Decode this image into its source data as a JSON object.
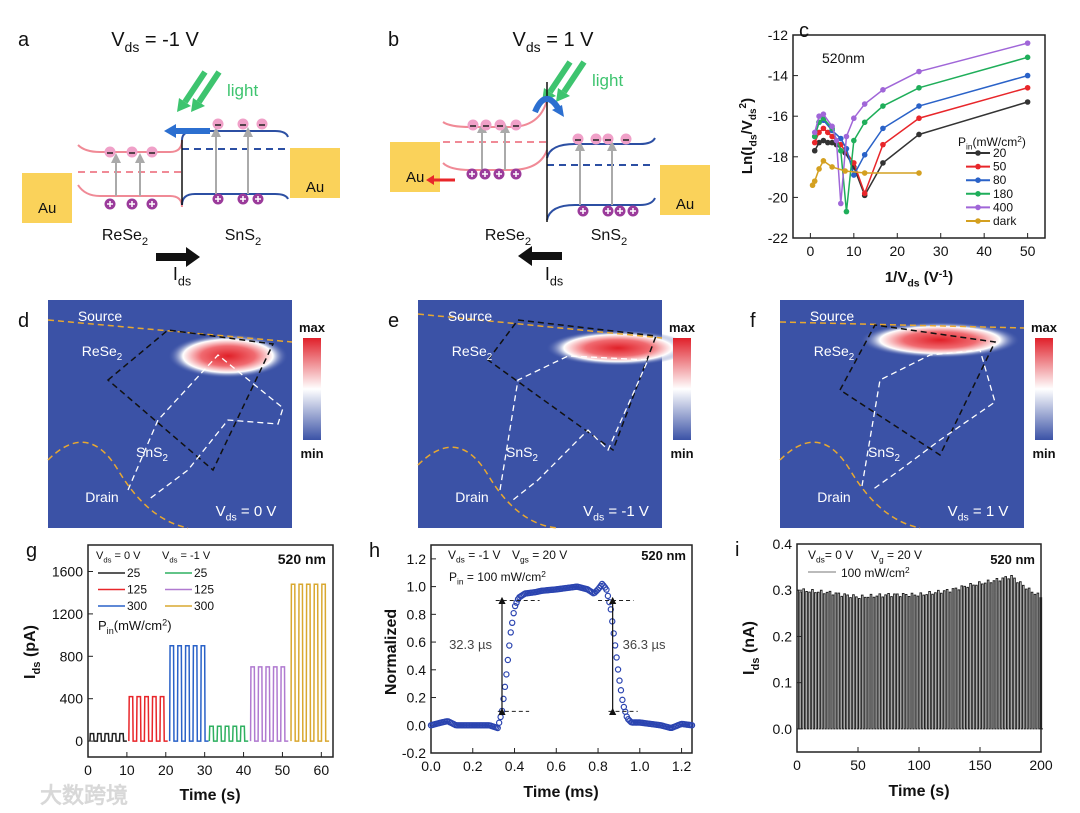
{
  "watermark": "大数跨境",
  "panels": {
    "a": {
      "label": "a",
      "title": {
        "main": "V",
        "sub": "ds",
        "rest": " = -1 V"
      },
      "light": "light",
      "left_metal": "Au",
      "right_metal": "Au",
      "left_material": {
        "main": "ReSe",
        "sub": "2"
      },
      "right_material": {
        "main": "SnS",
        "sub": "2"
      },
      "current": {
        "main": "I",
        "sub": "ds"
      },
      "current_direction": "right"
    },
    "b": {
      "label": "b",
      "title": {
        "main": "V",
        "sub": "ds",
        "rest": " = 1 V"
      },
      "light": "light",
      "left_metal": "Au",
      "right_metal": "Au",
      "left_material": {
        "main": "ReSe",
        "sub": "2"
      },
      "right_material": {
        "main": "SnS",
        "sub": "2"
      },
      "current": {
        "main": "I",
        "sub": "ds"
      },
      "current_direction": "left"
    },
    "d": {
      "label": "d",
      "source": "Source",
      "drain": "Drain",
      "rese2": {
        "main": "ReSe",
        "sub": "2"
      },
      "sns2": {
        "main": "SnS",
        "sub": "2"
      },
      "bias": {
        "main": "V",
        "sub": "ds",
        "rest": " = 0 V"
      },
      "cb_max": "max",
      "cb_min": "min"
    },
    "e": {
      "label": "e",
      "source": "Source",
      "drain": "Drain",
      "rese2": {
        "main": "ReSe",
        "sub": "2"
      },
      "sns2": {
        "main": "SnS",
        "sub": "2"
      },
      "bias": {
        "main": "V",
        "sub": "ds",
        "rest": " = -1 V"
      },
      "cb_max": "max",
      "cb_min": "min"
    },
    "f": {
      "label": "f",
      "source": "Source",
      "drain": "Drain",
      "rese2": {
        "main": "ReSe",
        "sub": "2"
      },
      "sns2": {
        "main": "SnS",
        "sub": "2"
      },
      "bias": {
        "main": "V",
        "sub": "ds",
        "rest": " = 1 V"
      },
      "cb_max": "max",
      "cb_min": "min"
    }
  },
  "colors": {
    "heat_bg": "#3b52a6",
    "hot": "#e8202a",
    "au": "#fad25a",
    "rese2_band": "#f08a96",
    "sns2_band": "#2c4fa3",
    "light": "#3ec46f",
    "electron": "#f0a0c8",
    "hole": "#9b3b9b"
  },
  "chart_data": [
    {
      "id": "c",
      "label": "c",
      "type": "line",
      "annotation": "520nm",
      "xlabel": {
        "main": "1/V",
        "sub": "ds",
        "rest": " (V",
        "sup": "-1",
        "end": ")"
      },
      "ylabel": "Ln(I_ds/V_ds^2)",
      "xlim": [
        -4,
        54
      ],
      "ylim": [
        -22,
        -12
      ],
      "xticks": [
        0,
        10,
        20,
        30,
        40,
        50
      ],
      "yticks": [
        -22,
        -20,
        -18,
        -16,
        -14,
        -12
      ],
      "legend_title": {
        "main": "P",
        "sub": "in",
        "rest": "(mW/cm",
        "sup": "2",
        "end": ")"
      },
      "legend_position": "bottom-right",
      "series": [
        {
          "name": "20",
          "color": "#333333",
          "marker": "square",
          "x": [
            1,
            2,
            3,
            4,
            5,
            6,
            8,
            10,
            12.5,
            16.7,
            25,
            50
          ],
          "y": [
            -17.7,
            -17.3,
            -17.2,
            -17.3,
            -17.3,
            -17.4,
            -17.8,
            -18.5,
            -19.9,
            -18.3,
            -16.9,
            -15.3
          ]
        },
        {
          "name": "50",
          "color": "#e8262a",
          "marker": "circle",
          "x": [
            1,
            2,
            3,
            4,
            5,
            7,
            10,
            12.5,
            16.7,
            25,
            50
          ],
          "y": [
            -17.3,
            -16.8,
            -16.6,
            -16.8,
            -17.0,
            -17.4,
            -18.3,
            -19.8,
            -17.4,
            -16.1,
            -14.6
          ]
        },
        {
          "name": "80",
          "color": "#2a62c8",
          "marker": "triangle-up",
          "x": [
            1,
            2,
            3,
            5,
            7,
            8.3,
            10,
            12.5,
            16.7,
            25,
            50
          ],
          "y": [
            -17.0,
            -16.3,
            -16.2,
            -16.7,
            -17.1,
            -17.6,
            -18.9,
            -17.9,
            -16.6,
            -15.5,
            -14.0
          ]
        },
        {
          "name": "180",
          "color": "#1fae5a",
          "marker": "triangle-down",
          "x": [
            1,
            2,
            3,
            5,
            7,
            8.3,
            10,
            12.5,
            16.7,
            25,
            50
          ],
          "y": [
            -17.0,
            -16.3,
            -16.1,
            -16.6,
            -17.7,
            -20.7,
            -17.2,
            -16.3,
            -15.5,
            -14.6,
            -13.1
          ]
        },
        {
          "name": "400",
          "color": "#a066d8",
          "marker": "diamond",
          "x": [
            1,
            2,
            3,
            5,
            6,
            7,
            8.3,
            10,
            12.5,
            16.7,
            25,
            50
          ],
          "y": [
            -16.8,
            -16.0,
            -15.9,
            -16.5,
            -17.2,
            -20.3,
            -17.0,
            -16.1,
            -15.4,
            -14.7,
            -13.8,
            -12.4
          ]
        },
        {
          "name": "dark",
          "color": "#d4a020",
          "marker": "triangle-left",
          "x": [
            0.5,
            1,
            2,
            3,
            5,
            8,
            12.5,
            25
          ],
          "y": [
            -19.4,
            -19.2,
            -18.6,
            -18.2,
            -18.5,
            -18.7,
            -18.8,
            -18.8
          ]
        }
      ]
    },
    {
      "id": "g",
      "label": "g",
      "type": "line",
      "annotation": "520 nm",
      "xlabel": "Time (s)",
      "ylabel": {
        "main": "I",
        "sub": "ds",
        "rest": " (pA)"
      },
      "xlim": [
        0,
        63
      ],
      "ylim": [
        -150,
        1850
      ],
      "xticks": [
        0,
        10,
        20,
        30,
        40,
        50,
        60
      ],
      "yticks": [
        0,
        400,
        800,
        1200,
        1600
      ],
      "legend_headers": [
        {
          "main": "V",
          "sub": "ds",
          "rest": " = 0 V"
        },
        {
          "main": "V",
          "sub": "ds",
          "rest": " = -1 V"
        }
      ],
      "legend_title": {
        "main": "P",
        "sub": "in",
        "rest": "(mW/cm",
        "sup": "2",
        "end": ")"
      },
      "legend_position": "top-left",
      "series": [
        {
          "name": "25",
          "group": "Vds = 0 V",
          "color": "#222222",
          "t_start": 0.5,
          "t_end": 10,
          "on": 70,
          "off": 0,
          "cycles": 5
        },
        {
          "name": "125",
          "group": "Vds = 0 V",
          "color": "#e8262a",
          "t_start": 10.5,
          "t_end": 20.5,
          "on": 420,
          "off": 0,
          "cycles": 5
        },
        {
          "name": "300",
          "group": "Vds = 0 V",
          "color": "#2a62c8",
          "t_start": 21,
          "t_end": 31,
          "on": 900,
          "off": 0,
          "cycles": 5
        },
        {
          "name": "25",
          "group": "Vds = -1 V",
          "color": "#2fb060",
          "t_start": 31.2,
          "t_end": 41.2,
          "on": 140,
          "off": 0,
          "cycles": 5
        },
        {
          "name": "125",
          "group": "Vds = -1 V",
          "color": "#b07ad0",
          "t_start": 41.8,
          "t_end": 51.5,
          "on": 700,
          "off": 0,
          "cycles": 5
        },
        {
          "name": "300",
          "group": "Vds = -1 V",
          "color": "#d9a830",
          "t_start": 52.2,
          "t_end": 62,
          "on": 1480,
          "off": 0,
          "cycles": 5
        }
      ]
    },
    {
      "id": "h",
      "label": "h",
      "type": "scatter",
      "annotation": "520 nm",
      "conditions": [
        {
          "main": "V",
          "sub": "ds",
          "rest": " = -1 V"
        },
        {
          "main": "V",
          "sub": "gs",
          "rest": " = 20 V"
        },
        {
          "main": "P",
          "sub": "in",
          "rest": " = 100 mW/cm",
          "sup": "2"
        }
      ],
      "xlabel": "Time (ms)",
      "ylabel": "Normalized",
      "xlim": [
        0,
        1.25
      ],
      "ylim": [
        -0.2,
        1.3
      ],
      "xticks": [
        0.0,
        0.2,
        0.4,
        0.6,
        0.8,
        1.0,
        1.2
      ],
      "yticks": [
        -0.2,
        0.0,
        0.2,
        0.4,
        0.6,
        0.8,
        1.0,
        1.2
      ],
      "rise_time": "32.3 µs",
      "fall_time": "36.3 µs",
      "levels": [
        0.1,
        0.9
      ],
      "color": "#2b44b0",
      "x": [
        0,
        0.05,
        0.08,
        0.12,
        0.2,
        0.28,
        0.32,
        0.34,
        0.36,
        0.38,
        0.4,
        0.42,
        0.45,
        0.5,
        0.53,
        0.6,
        0.7,
        0.75,
        0.78,
        0.8,
        0.82,
        0.84,
        0.86,
        0.88,
        0.9,
        0.92,
        0.94,
        0.96,
        1.0,
        1.05,
        1.1,
        1.15,
        1.2,
        1.25
      ],
      "y": [
        0.0,
        0.02,
        0.03,
        0.0,
        0.0,
        0.0,
        -0.02,
        0.1,
        0.35,
        0.65,
        0.85,
        0.92,
        0.95,
        0.96,
        0.97,
        0.98,
        1.0,
        0.98,
        0.95,
        0.98,
        1.02,
        0.98,
        0.85,
        0.6,
        0.35,
        0.15,
        0.05,
        0.02,
        0.02,
        0.01,
        0.0,
        -0.02,
        0.01,
        0.0
      ]
    },
    {
      "id": "i",
      "label": "i",
      "type": "line",
      "annotation": "520 nm",
      "conditions": [
        {
          "main": "V",
          "sub": "ds",
          "rest": "= 0 V"
        },
        {
          "main": "V",
          "sub": "g",
          "rest": " = 20 V"
        }
      ],
      "legend_entry": {
        "main": "100 mW/cm",
        "sup": "2"
      },
      "xlabel": "Time (s)",
      "ylabel": {
        "main": "I",
        "sub": "ds",
        "rest": " (nA)"
      },
      "xlim": [
        0,
        200
      ],
      "ylim": [
        -0.05,
        0.4
      ],
      "xticks": [
        0,
        50,
        100,
        150,
        200
      ],
      "yticks": [
        0.0,
        0.1,
        0.2,
        0.3,
        0.4
      ],
      "color": "#222222",
      "pulse_period_s": 2.4,
      "envelope_t": [
        0,
        25,
        50,
        75,
        100,
        125,
        140,
        160,
        175,
        190,
        200
      ],
      "envelope_i": [
        0.3,
        0.295,
        0.285,
        0.29,
        0.29,
        0.3,
        0.31,
        0.32,
        0.33,
        0.3,
        0.285
      ]
    }
  ]
}
